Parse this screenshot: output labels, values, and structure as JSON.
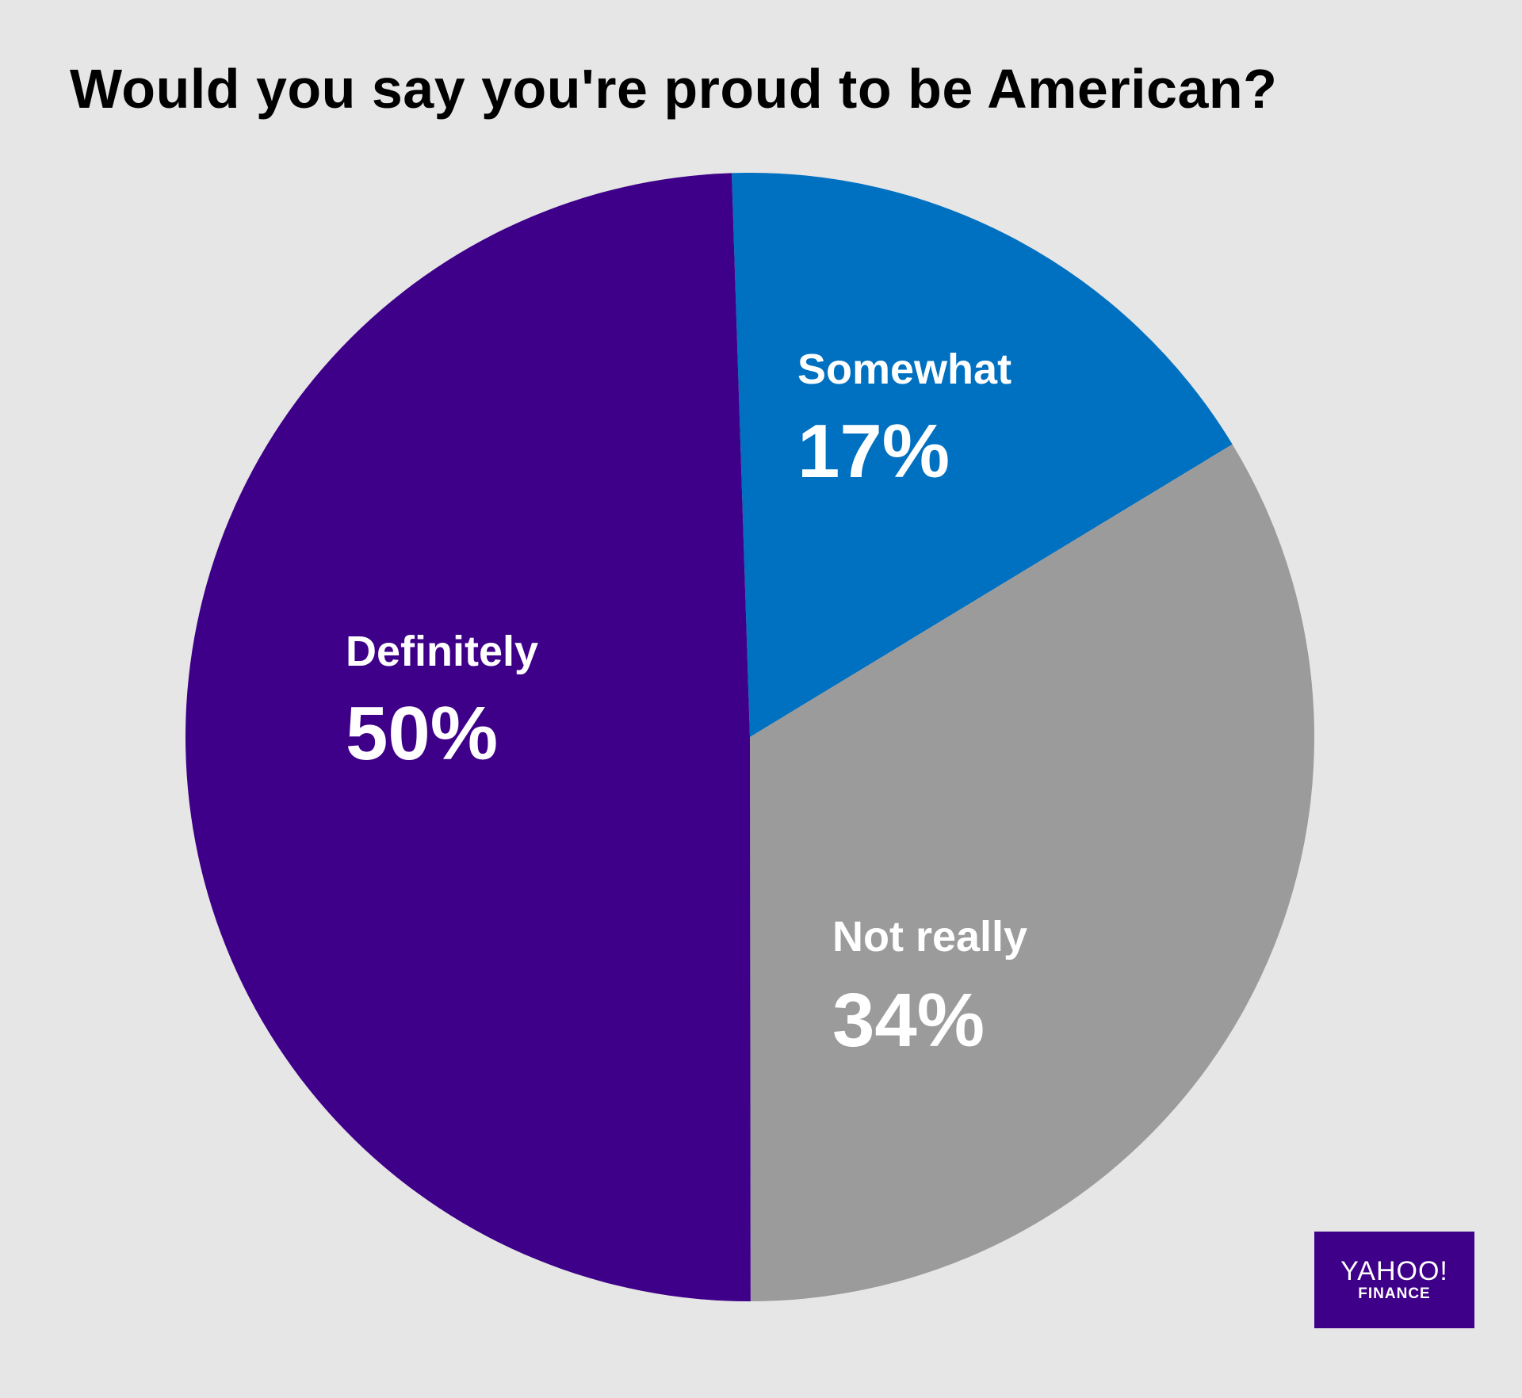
{
  "chart_data": {
    "type": "pie",
    "title": "Would you say you're proud to be American?",
    "slices": [
      {
        "label": "Somewhat",
        "value": 17,
        "value_label": "17%",
        "color": "#0070c0"
      },
      {
        "label": "Not really",
        "value": 34,
        "value_label": "34%",
        "color": "#9b9b9b"
      },
      {
        "label": "Definitely",
        "value": 50,
        "value_label": "50%",
        "color": "#3f0089"
      }
    ],
    "legend": "none",
    "labels_inside_slices": true
  },
  "branding": {
    "logo_main": "YAHOO!",
    "logo_sub": "FINANCE",
    "logo_color": "#3f0089"
  },
  "background_color": "#e6e6e6"
}
